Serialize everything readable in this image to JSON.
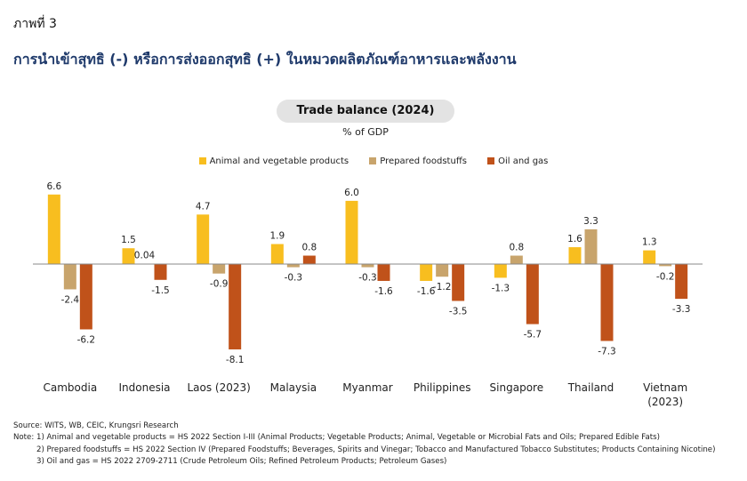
{
  "figure": {
    "number": "ภาพที่ 3",
    "title": "การนำเข้าสุทธิ (-) หรือการส่งออกสุทธิ (+) ในหมวดผลิตภัณฑ์อาหารและพลังงาน"
  },
  "colors": {
    "series_1": "#f8be1f",
    "series_2": "#c8a46c",
    "series_3": "#c0521a",
    "axis": "#888888"
  },
  "chart_data": {
    "type": "bar",
    "title": "Trade balance (2024)",
    "ylabel": "% of GDP",
    "ylim": [
      -8.5,
      7.0
    ],
    "grid": false,
    "legend": "top-center",
    "categories": [
      [
        "Cambodia"
      ],
      [
        "Indonesia"
      ],
      [
        "Laos (2023)"
      ],
      [
        "Malaysia"
      ],
      [
        "Myanmar"
      ],
      [
        "Philippines"
      ],
      [
        "Singapore"
      ],
      [
        "Thailand"
      ],
      [
        "Vietnam",
        "(2023)"
      ]
    ],
    "series": [
      {
        "name": "Animal and vegetable products",
        "values": [
          6.6,
          1.5,
          4.7,
          1.9,
          6.0,
          -1.6,
          -1.3,
          1.6,
          1.3
        ],
        "labels": [
          "6.6",
          "1.5",
          "4.7",
          "1.9",
          "6.0",
          "-1.6",
          "-1.3",
          "1.6",
          "1.3"
        ]
      },
      {
        "name": "Prepared foodstuffs",
        "values": [
          -2.4,
          0.04,
          -0.9,
          -0.3,
          -0.3,
          -1.2,
          0.8,
          3.3,
          -0.2
        ],
        "labels": [
          "-2.4",
          "0.04",
          "-0.9",
          "-0.3",
          "-0.3",
          "-1.2",
          "0.8",
          "3.3",
          "-0.2"
        ]
      },
      {
        "name": "Oil and gas",
        "values": [
          -6.2,
          -1.5,
          -8.1,
          0.8,
          -1.6,
          -3.5,
          -5.7,
          -7.3,
          -3.3
        ],
        "labels": [
          "-6.2",
          "-1.5",
          "-8.1",
          "0.8",
          "-1.6",
          "-3.5",
          "-5.7",
          "-7.3",
          "-3.3"
        ]
      }
    ]
  },
  "footer": {
    "source": "Source: WITS, WB, CEIC, Krungsri Research",
    "note_1": "Note: 1) Animal and vegetable products = HS 2022 Section I-III (Animal Products; Vegetable Products; Animal, Vegetable or Microbial Fats and Oils; Prepared Edible Fats)",
    "note_2": "2) Prepared foodstuffs = HS 2022 Section IV (Prepared Foodstuffs; Beverages, Spirits and Vinegar; Tobacco and Manufactured Tobacco Substitutes; Products Containing Nicotine)",
    "note_3": "3) Oil and gas = HS 2022 2709-2711 (Crude Petroleum Oils; Refined Petroleum Products; Petroleum Gases)"
  }
}
